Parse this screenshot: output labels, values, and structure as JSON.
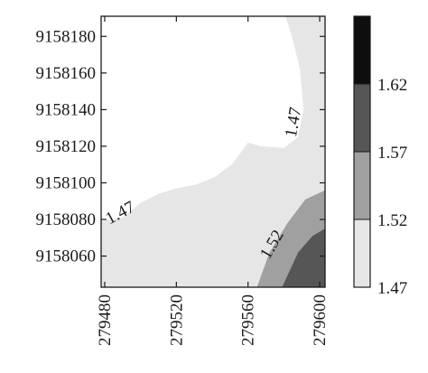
{
  "chart_data": {
    "type": "heatmap",
    "title": "",
    "xlabel": "",
    "ylabel": "",
    "x_ticks": [
      279480,
      279520,
      279560,
      279600
    ],
    "y_ticks": [
      9158060,
      9158080,
      9158100,
      9158120,
      9158140,
      9158160,
      9158180
    ],
    "xlim": [
      279478,
      279603
    ],
    "ylim": [
      9158043,
      9158191
    ],
    "colorbar": {
      "levels": [
        1.47,
        1.52,
        1.57,
        1.62
      ],
      "labels": [
        "1.47",
        "1.52",
        "1.57",
        "1.62"
      ],
      "colors": [
        "#e6e6e6",
        "#a0a0a0",
        "#565656",
        "#0e0e0e"
      ]
    },
    "contour_labels": [
      {
        "text": "1.47",
        "x": 279489,
        "y": 9158083,
        "angle": -28
      },
      {
        "text": "1.47",
        "x": 279586,
        "y": 9158133,
        "angle": -80
      },
      {
        "text": "1.52",
        "x": 279574,
        "y": 9158066,
        "angle": -60
      }
    ],
    "regions": [
      {
        "level": 1.47,
        "boundary": [
          [
            279478,
            9158079
          ],
          [
            279490,
            9158081
          ],
          [
            279500,
            9158089
          ],
          [
            279510,
            9158094
          ],
          [
            279520,
            9158097
          ],
          [
            279531,
            9158099
          ],
          [
            279541,
            9158103
          ],
          [
            279551,
            9158110
          ],
          [
            279560,
            9158122
          ],
          [
            279567,
            9158120
          ],
          [
            279580,
            9158119
          ],
          [
            279588,
            9158125
          ],
          [
            279591,
            9158140
          ],
          [
            279589,
            9158162
          ],
          [
            279585,
            9158178
          ],
          [
            279581,
            9158191
          ],
          [
            279603,
            9158191
          ]
        ]
      },
      {
        "level": 1.52,
        "boundary": [
          [
            279565,
            9158043
          ],
          [
            279572,
            9158062
          ],
          [
            279582,
            9158078
          ],
          [
            279592,
            9158091
          ],
          [
            279603,
            9158096
          ]
        ]
      },
      {
        "level": 1.57,
        "boundary": [
          [
            279579,
            9158043
          ],
          [
            279588,
            9158062
          ],
          [
            279596,
            9158071
          ],
          [
            279603,
            9158075
          ]
        ]
      }
    ]
  }
}
